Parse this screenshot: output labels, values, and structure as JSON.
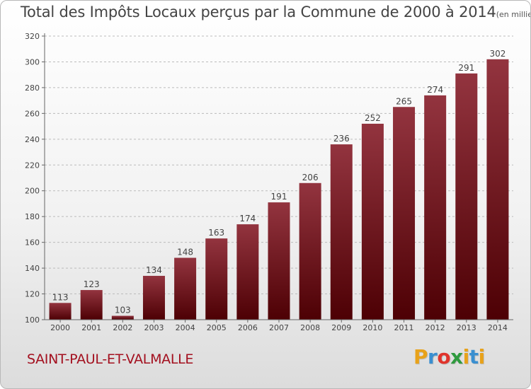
{
  "header": {
    "title": "Total des Impôts Locaux perçus par la Commune de 2000 à 2014",
    "subtitle": "(en milliers d'€)"
  },
  "footer": {
    "commune": "SAINT-PAUL-ET-VALMALLE",
    "brand_letters": [
      "P",
      "r",
      "o",
      "x",
      "i",
      "t",
      "i"
    ],
    "brand_colors": [
      "#e8a21a",
      "#3a8fd0",
      "#e0342c",
      "#2f9a3e",
      "#e8a21a",
      "#3a8fd0",
      "#e8a21a"
    ]
  },
  "colors": {
    "bar_top": "#93343f",
    "bar_bottom": "#4d0004",
    "grid": "#bbbbbb",
    "axis": "#666666",
    "label": "#444444"
  },
  "chart_data": {
    "type": "bar",
    "title": "Total des Impôts Locaux perçus par la Commune de 2000 à 2014",
    "subtitle": "(en milliers d'€)",
    "categories": [
      "2000",
      "2001",
      "2002",
      "2003",
      "2004",
      "2005",
      "2006",
      "2007",
      "2008",
      "2009",
      "2010",
      "2011",
      "2012",
      "2013",
      "2014"
    ],
    "values": [
      113,
      123,
      103,
      134,
      148,
      163,
      174,
      191,
      206,
      236,
      252,
      265,
      274,
      291,
      302
    ],
    "ylim": [
      100,
      320
    ],
    "yticks": [
      100,
      120,
      140,
      160,
      180,
      200,
      220,
      240,
      260,
      280,
      300,
      320
    ],
    "grid": true,
    "data_labels": true,
    "xlabel": "",
    "ylabel": ""
  }
}
